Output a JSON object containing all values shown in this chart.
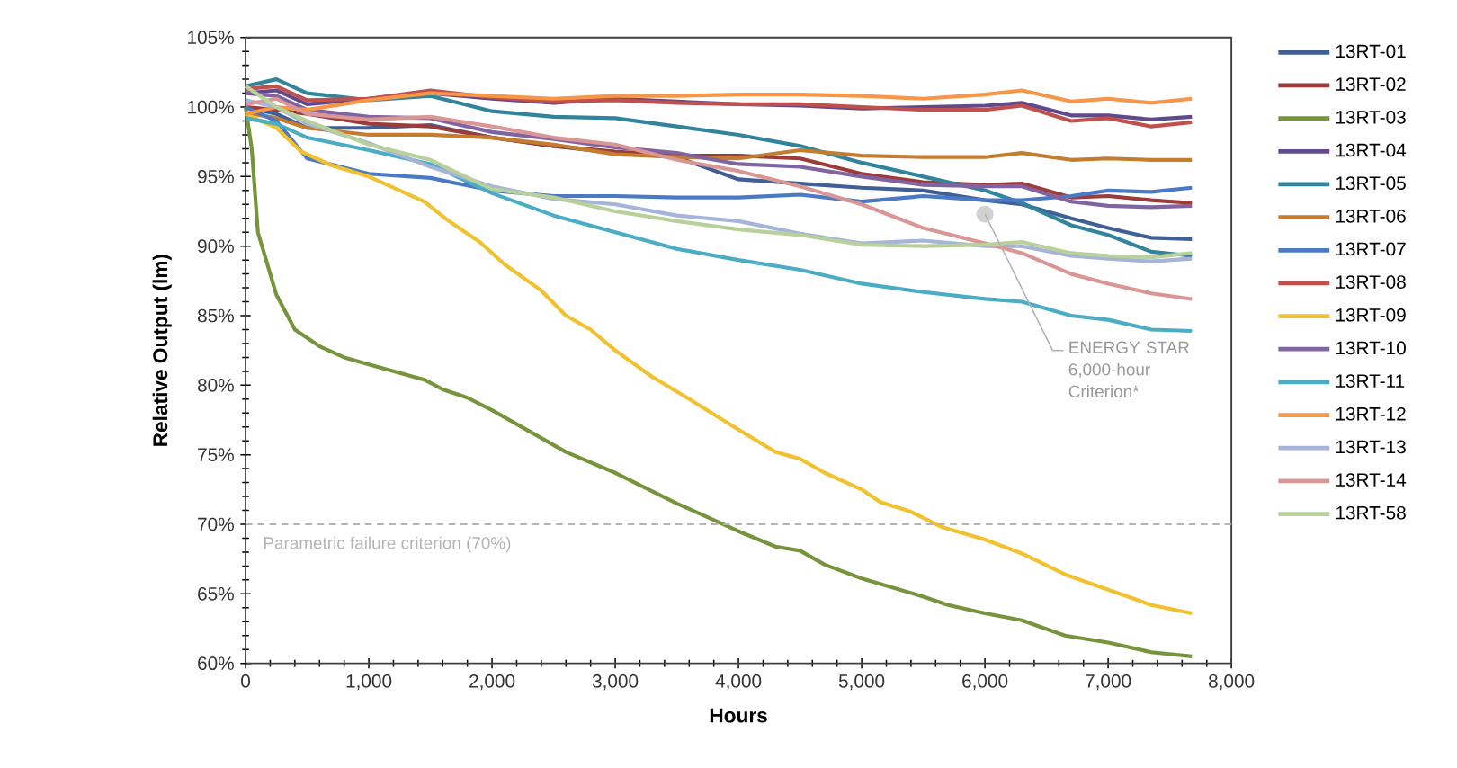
{
  "chart_data": {
    "type": "line",
    "xlabel": "Hours",
    "ylabel": "Relative Output (lm)",
    "x": [
      0,
      250,
      500,
      1000,
      1500,
      2000,
      2500,
      3000,
      3500,
      4000,
      4500,
      5000,
      5500,
      6000,
      6300,
      6700,
      7000,
      7350,
      7680
    ],
    "xlim": [
      0,
      8000
    ],
    "xticks": [
      {
        "value": 0,
        "label": "0"
      },
      {
        "value": 1000,
        "label": "1,000"
      },
      {
        "value": 2000,
        "label": "2,000"
      },
      {
        "value": 3000,
        "label": "3,000"
      },
      {
        "value": 4000,
        "label": "4,000"
      },
      {
        "value": 5000,
        "label": "5,000"
      },
      {
        "value": 6000,
        "label": "6,000"
      },
      {
        "value": 7000,
        "label": "7,000"
      },
      {
        "value": 8000,
        "label": "8,000"
      }
    ],
    "ylim": [
      60,
      105
    ],
    "yticks": [
      {
        "value": 60,
        "label": "60%"
      },
      {
        "value": 65,
        "label": "65%"
      },
      {
        "value": 70,
        "label": "70%"
      },
      {
        "value": 75,
        "label": "75%"
      },
      {
        "value": 80,
        "label": "80%"
      },
      {
        "value": 85,
        "label": "85%"
      },
      {
        "value": 90,
        "label": "90%"
      },
      {
        "value": 95,
        "label": "95%"
      },
      {
        "value": 100,
        "label": "100%"
      },
      {
        "value": 105,
        "label": "105%"
      }
    ],
    "legend": "right",
    "series": [
      {
        "name": "13RT-01",
        "color": "#3f5f96",
        "values": [
          100,
          99.5,
          98.5,
          98.5,
          98.7,
          97.8,
          97.2,
          96.7,
          96.4,
          94.8,
          94.5,
          94.2,
          94,
          93.3,
          93,
          92,
          91.3,
          90.6,
          90.5
        ]
      },
      {
        "name": "13RT-02",
        "color": "#9c3b3a",
        "values": [
          100,
          99.8,
          99.5,
          98.8,
          98.6,
          97.8,
          97.2,
          96.8,
          96.5,
          96.5,
          96.3,
          95.2,
          94.6,
          94.4,
          94.5,
          93.5,
          93.6,
          93.3,
          93.1
        ]
      },
      {
        "name": "13RT-03",
        "color": "#77933c",
        "x": [
          0,
          50,
          100,
          250,
          400,
          600,
          800,
          1000,
          1450,
          1600,
          1800,
          2000,
          2300,
          2600,
          3000,
          3500,
          4000,
          4300,
          4500,
          4700,
          5000,
          5500,
          5700,
          6000,
          6300,
          6650,
          7000,
          7350,
          7680
        ],
        "values": [
          100,
          97,
          91,
          86.5,
          84,
          82.8,
          82,
          81.5,
          80.4,
          79.7,
          79.1,
          78.2,
          76.7,
          75.2,
          73.7,
          71.5,
          69.5,
          68.4,
          68.1,
          67.1,
          66.1,
          64.8,
          64.2,
          63.6,
          63.1,
          62,
          61.5,
          60.8,
          60.5
        ]
      },
      {
        "name": "13RT-04",
        "color": "#5f4a8b",
        "values": [
          101,
          101.2,
          100.2,
          100.6,
          101,
          100.6,
          100.3,
          100.6,
          100.4,
          100.2,
          100.1,
          99.9,
          100,
          100.1,
          100.3,
          99.4,
          99.4,
          99.1,
          99.3
        ]
      },
      {
        "name": "13RT-05",
        "color": "#31849b",
        "values": [
          101.5,
          102,
          101,
          100.5,
          100.8,
          99.7,
          99.3,
          99.2,
          98.6,
          98,
          97.2,
          96,
          95,
          94,
          93.1,
          91.5,
          90.8,
          89.6,
          89.3
        ]
      },
      {
        "name": "13RT-06",
        "color": "#c47c2e",
        "values": [
          99.6,
          99.2,
          98.5,
          98,
          98,
          97.8,
          97.3,
          96.6,
          96.4,
          96.3,
          96.9,
          96.5,
          96.4,
          96.4,
          96.7,
          96.2,
          96.3,
          96.2,
          96.2
        ]
      },
      {
        "name": "13RT-07",
        "color": "#4a7ac6",
        "values": [
          100,
          99,
          96.3,
          95.2,
          94.9,
          94,
          93.6,
          93.6,
          93.5,
          93.5,
          93.7,
          93.2,
          93.6,
          93.3,
          93.3,
          93.6,
          94,
          93.9,
          94.2
        ]
      },
      {
        "name": "13RT-08",
        "color": "#c0504d",
        "values": [
          101.3,
          101.5,
          100.5,
          100.6,
          101.2,
          100.7,
          100.4,
          100.5,
          100.3,
          100.2,
          100.2,
          100,
          99.8,
          99.8,
          100.1,
          99,
          99.2,
          98.6,
          98.9
        ]
      },
      {
        "name": "13RT-09",
        "color": "#f2c12e",
        "x": [
          0,
          250,
          450,
          700,
          1000,
          1450,
          1650,
          1900,
          2100,
          2400,
          2600,
          2800,
          3000,
          3300,
          3600,
          4000,
          4300,
          4500,
          4700,
          5000,
          5150,
          5400,
          5650,
          6000,
          6300,
          6650,
          7000,
          7350,
          7680
        ],
        "values": [
          99.5,
          98.5,
          96.8,
          95.8,
          95,
          93.2,
          91.8,
          90.3,
          88.7,
          86.8,
          85,
          84,
          82.5,
          80.6,
          79,
          76.8,
          75.2,
          74.7,
          73.7,
          72.5,
          71.6,
          70.9,
          69.8,
          68.9,
          67.9,
          66.4,
          65.3,
          64.2,
          63.6
        ]
      },
      {
        "name": "13RT-10",
        "color": "#8064a2",
        "values": [
          101,
          100.8,
          99.8,
          99.3,
          99.2,
          98.2,
          97.7,
          97.1,
          96.7,
          95.9,
          95.7,
          95,
          94.4,
          94.3,
          94.3,
          93.2,
          92.9,
          92.8,
          92.9
        ]
      },
      {
        "name": "13RT-11",
        "color": "#4bacc6",
        "values": [
          99.2,
          98.8,
          97.8,
          96.9,
          95.9,
          93.8,
          92.2,
          91,
          89.8,
          89,
          88.3,
          87.3,
          86.7,
          86.2,
          86,
          85,
          84.7,
          84,
          83.9
        ]
      },
      {
        "name": "13RT-12",
        "color": "#f79646",
        "values": [
          99.5,
          100,
          99.8,
          100.5,
          101,
          100.8,
          100.6,
          100.8,
          100.8,
          100.9,
          100.9,
          100.8,
          100.6,
          100.9,
          101.2,
          100.4,
          100.6,
          100.3,
          100.6
        ]
      },
      {
        "name": "13RT-13",
        "color": "#a5b4d8",
        "values": [
          100.5,
          100,
          98.8,
          97.4,
          95.7,
          94.3,
          93.4,
          93,
          92.2,
          91.8,
          90.9,
          90.2,
          90.4,
          90,
          90,
          89.3,
          89.1,
          88.9,
          89.1
        ]
      },
      {
        "name": "13RT-14",
        "color": "#d99694",
        "values": [
          100.2,
          100.6,
          99.5,
          99.1,
          99.3,
          98.6,
          97.8,
          97.3,
          96.2,
          95.4,
          94.3,
          93,
          91.3,
          90.2,
          89.5,
          88,
          87.3,
          86.6,
          86.2
        ]
      },
      {
        "name": "13RT-58",
        "color": "#b8d19a",
        "values": [
          101.5,
          100,
          99,
          97.3,
          96.2,
          94.1,
          93.5,
          92.5,
          91.8,
          91.2,
          90.8,
          90.1,
          90,
          90.1,
          90.3,
          89.5,
          89.3,
          89.2,
          89.5
        ]
      }
    ],
    "ref_lines": [
      {
        "axis": "y",
        "value": 70,
        "label": "Parametric failure criterion (70%)",
        "color": "#b4b4b4",
        "line_style": "dashed"
      }
    ],
    "annotations": [
      {
        "text": "ENERGY STAR 6,000-hour Criterion*",
        "x": 6000,
        "y": 92.3
      }
    ]
  }
}
